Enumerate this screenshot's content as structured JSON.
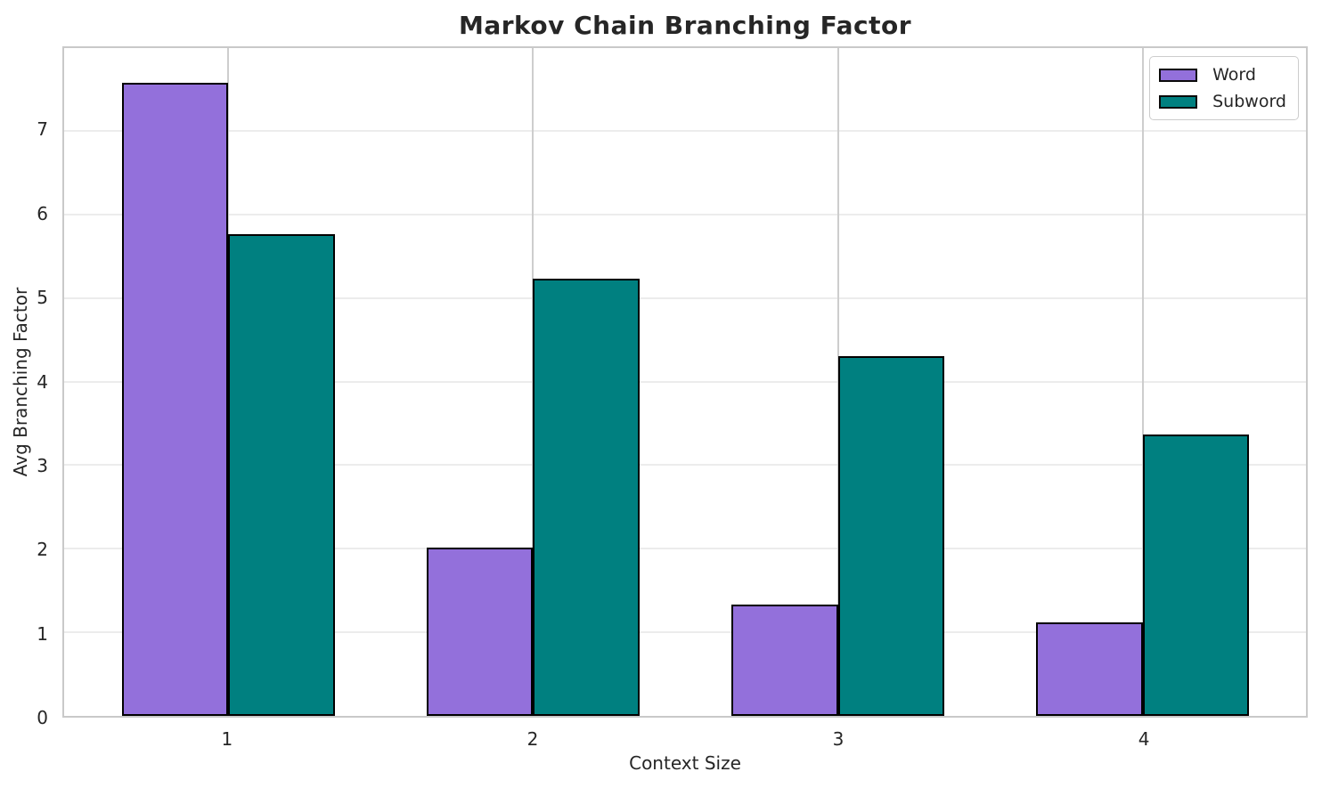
{
  "chart_data": {
    "type": "bar",
    "title": "Markov Chain Branching Factor",
    "xlabel": "Context Size",
    "ylabel": "Avg Branching Factor",
    "categories": [
      "1",
      "2",
      "3",
      "4"
    ],
    "x_positions": [
      1,
      2,
      3,
      4
    ],
    "series": [
      {
        "name": "Word",
        "color": "#9370DB",
        "values": [
          7.58,
          2.01,
          1.33,
          1.12
        ]
      },
      {
        "name": "Subword",
        "color": "#008080",
        "values": [
          5.76,
          5.23,
          4.3,
          3.37
        ]
      }
    ],
    "bar_width": 0.35,
    "bar_edge_color": "#000000",
    "xlim": [
      0.461,
      4.536
    ],
    "ylim": [
      0,
      7.99
    ],
    "yticks": [
      0,
      1,
      2,
      3,
      4,
      5,
      6,
      7
    ],
    "grid": true,
    "legend_position": "upper right"
  },
  "colors": {
    "background": "#ffffff",
    "grid_horizontal": "#ececec",
    "grid_vertical": "#cdcdcd",
    "spine": "#c9c9c9",
    "text": "#262626",
    "word_purple": "#9370DB",
    "subword_teal": "#008080",
    "bar_edge": "#000000"
  }
}
